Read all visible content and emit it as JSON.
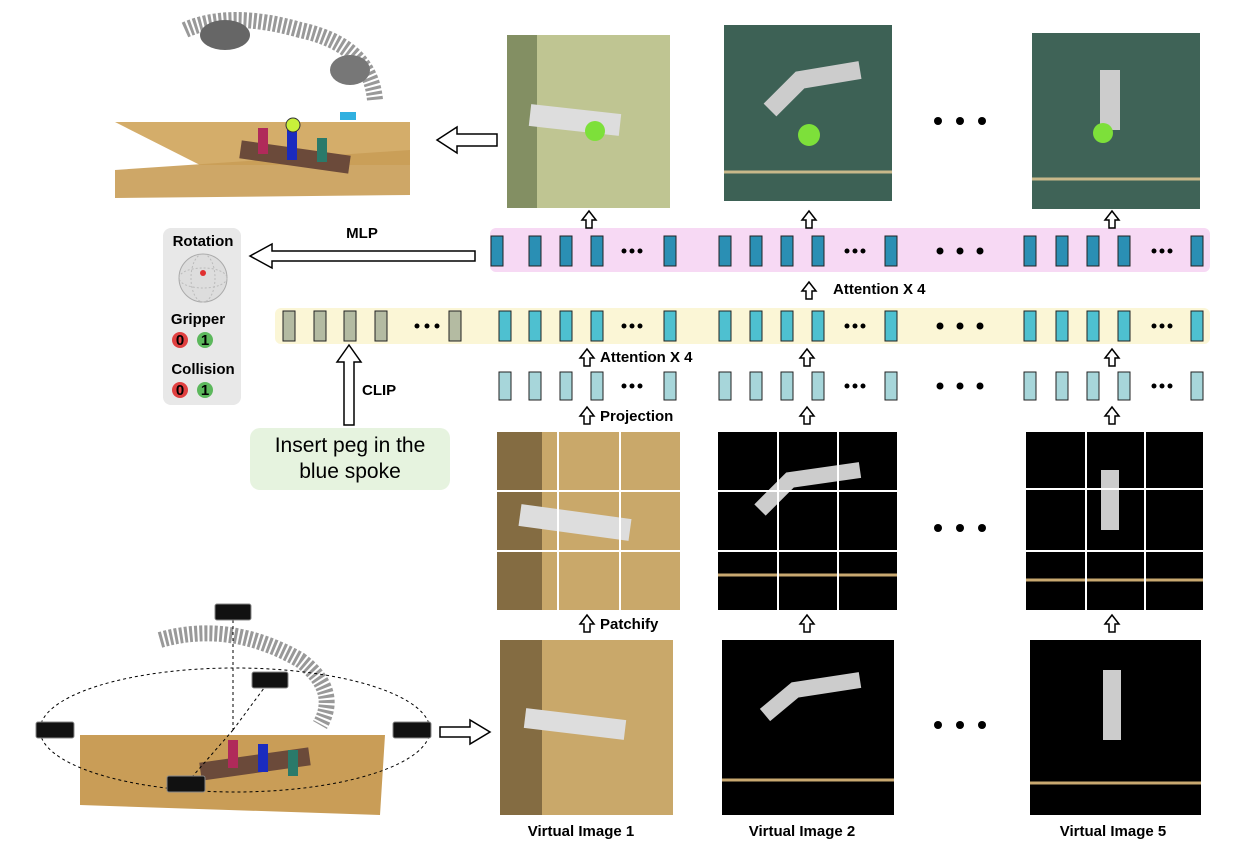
{
  "outputs": {
    "rotation": "Rotation",
    "gripper": {
      "label": "Gripper",
      "options": [
        "0",
        "1"
      ]
    },
    "collision": {
      "label": "Collision",
      "options": [
        "0",
        "1"
      ]
    }
  },
  "labels": {
    "mlp": "MLP",
    "clip": "CLIP",
    "attention_top": "Attention X 4",
    "attention_bottom": "Attention X 4",
    "projection": "Projection",
    "patchify": "Patchify"
  },
  "instruction": "Insert peg in the blue spoke",
  "virtual_images": [
    "Virtual Image 1",
    "Virtual Image 2",
    "Virtual Image 5"
  ]
}
